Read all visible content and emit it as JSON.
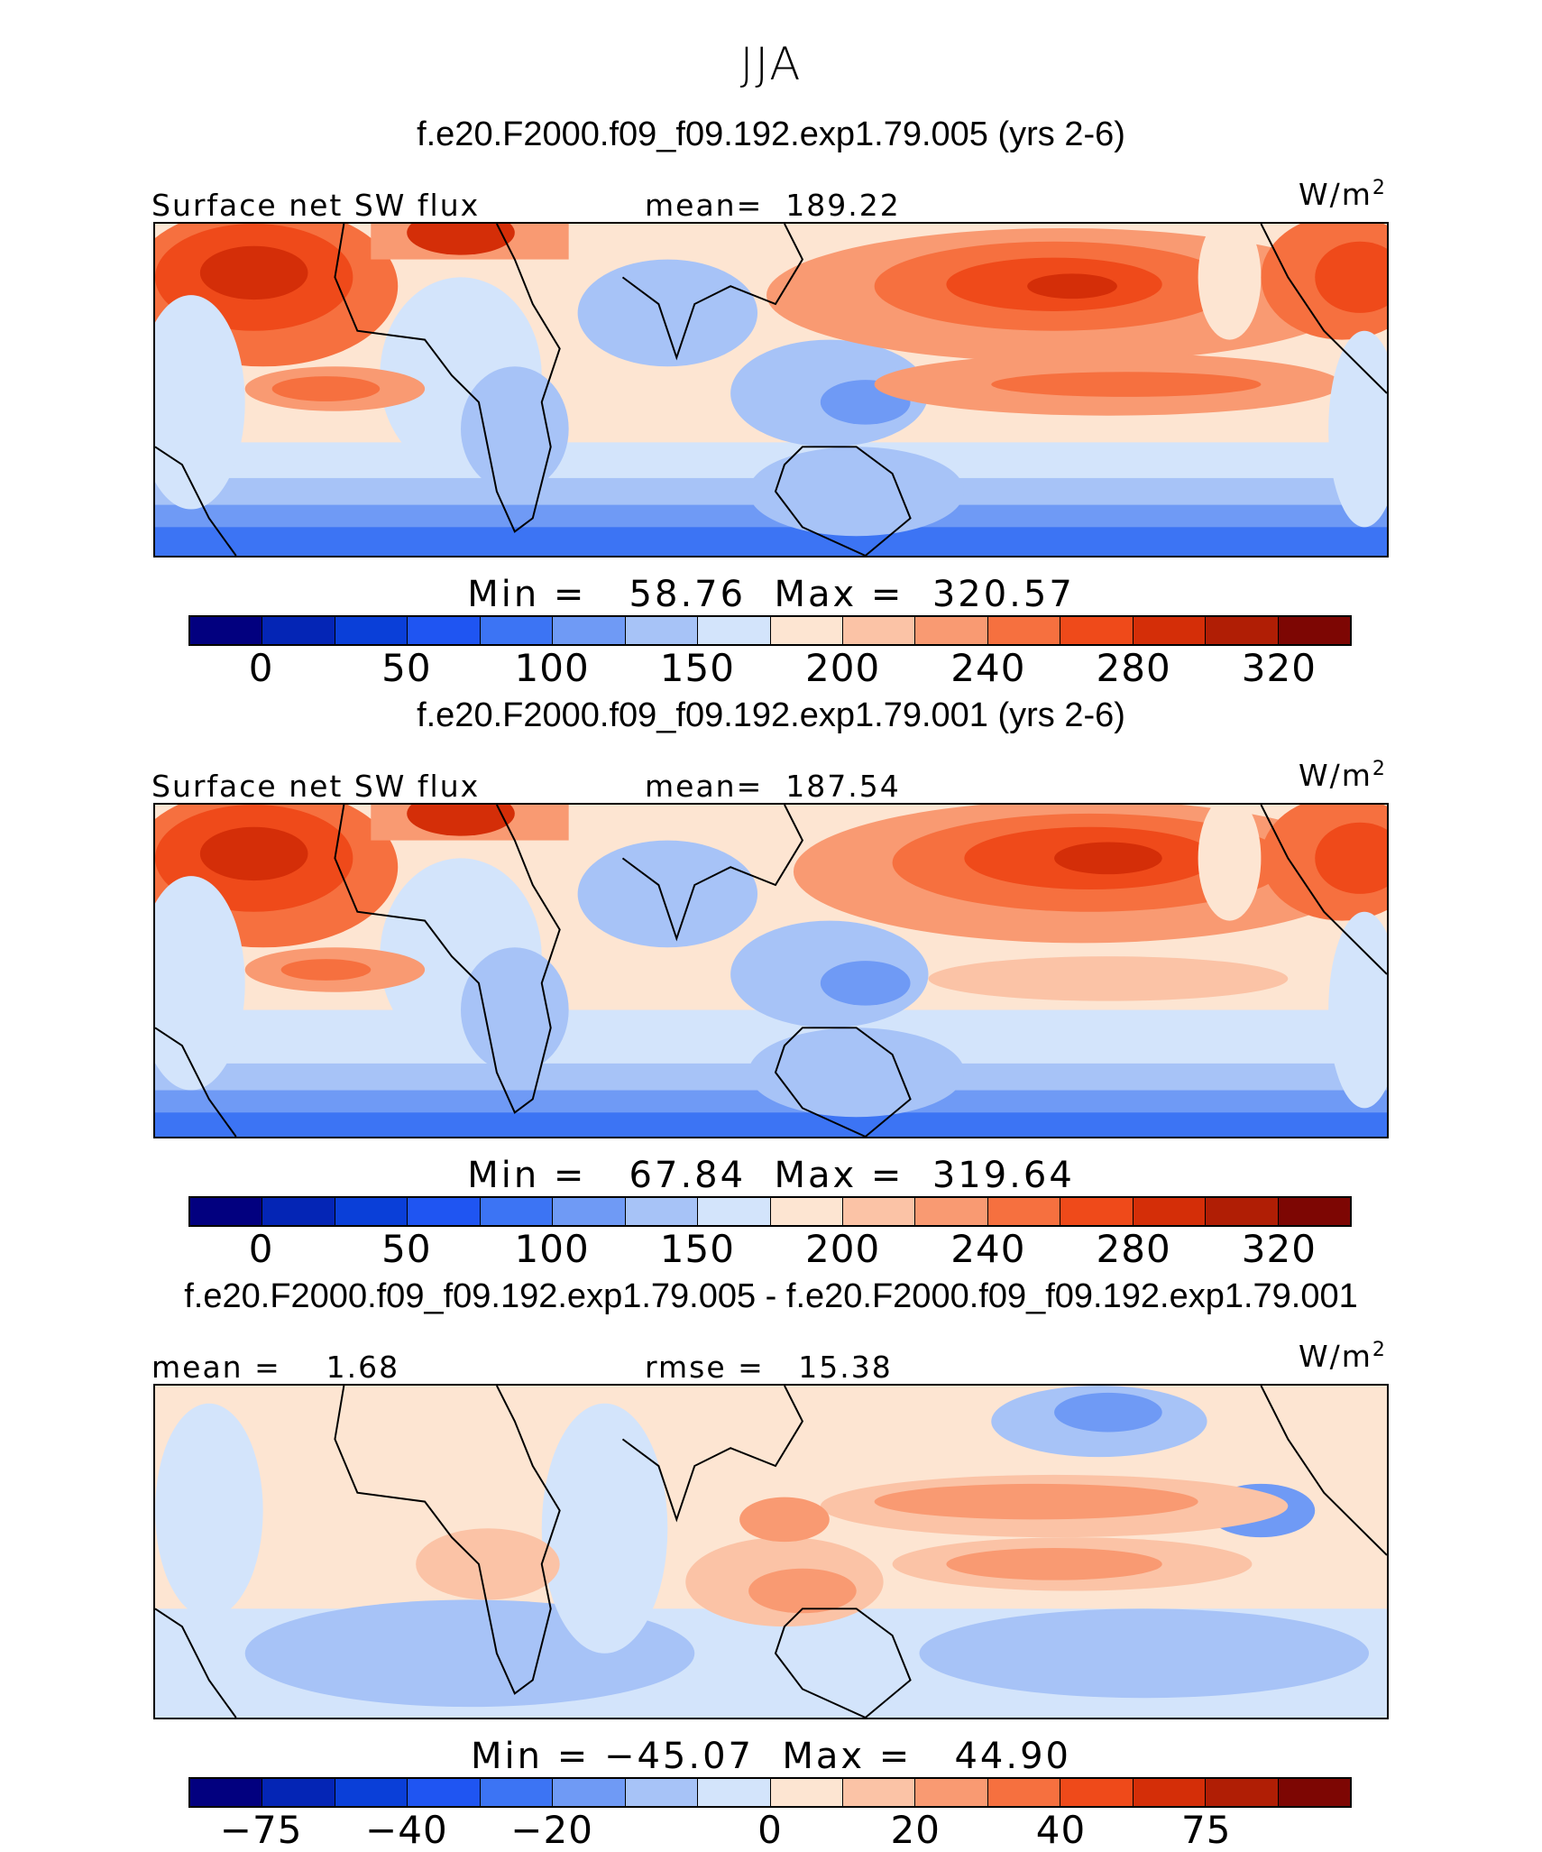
{
  "season": "JJA",
  "colors": [
    "#02007f",
    "#0425b5",
    "#0a3fd8",
    "#1f55f2",
    "#3c74f4",
    "#6f9af5",
    "#a7c3f7",
    "#d3e4fb",
    "#fde5d2",
    "#fbc3a6",
    "#f99a72",
    "#f6703f",
    "#ef4a1a",
    "#d42e08",
    "#b01e05",
    "#7d0603"
  ],
  "panels": [
    {
      "case_title": "f.e20.F2000.f09_f09.192.exp1.79.005 (yrs 2-6)",
      "left_label": "Surface net SW flux",
      "center_label": "mean=  189.22",
      "units": "W/m",
      "units_sup": "2",
      "minmax": "Min =   58.76  Max =  320.57",
      "ticks": [
        "0",
        "50",
        "100",
        "150",
        "200",
        "240",
        "280",
        "320"
      ]
    },
    {
      "case_title": "f.e20.F2000.f09_f09.192.exp1.79.001 (yrs 2-6)",
      "left_label": "Surface net SW flux",
      "center_label": "mean=  187.54",
      "units": "W/m",
      "units_sup": "2",
      "minmax": "Min =   67.84  Max =  319.64",
      "ticks": [
        "0",
        "50",
        "100",
        "150",
        "200",
        "240",
        "280",
        "320"
      ]
    },
    {
      "case_title": "f.e20.F2000.f09_f09.192.exp1.79.005 - f.e20.F2000.f09_f09.192.exp1.79.001",
      "left_label": "mean =    1.68",
      "center_label": "rmse =   15.38",
      "units": "W/m",
      "units_sup": "2",
      "minmax": "Min = −45.07  Max =   44.90",
      "ticks": [
        "−75",
        "−40",
        "−20",
        "0",
        "20",
        "40",
        "75"
      ]
    }
  ]
}
